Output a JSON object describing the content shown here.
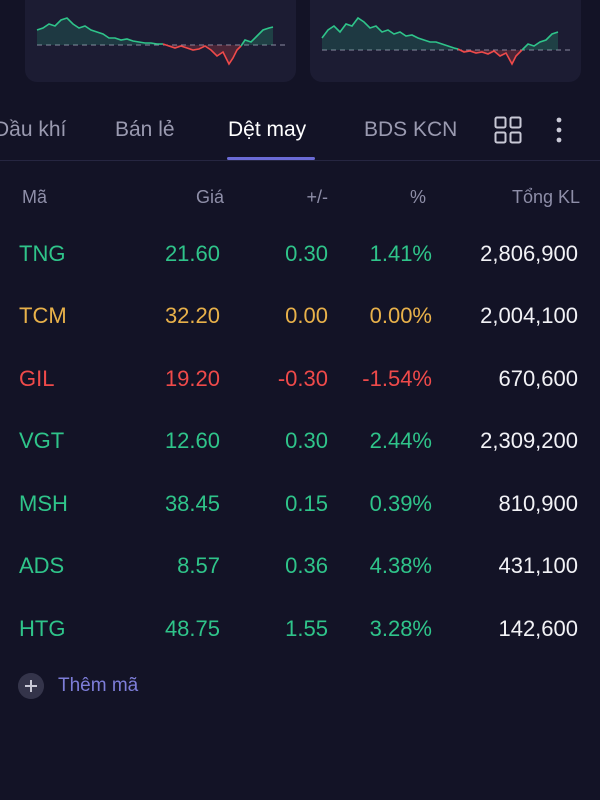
{
  "colors": {
    "up": "#2fc48a",
    "reference": "#e8b14a",
    "down": "#ef4a4a",
    "accent": "#6b6bd6",
    "background": "#131326"
  },
  "tabs": [
    {
      "label": "Dầu khí",
      "active": false
    },
    {
      "label": "Bán lẻ",
      "active": false
    },
    {
      "label": "Dệt may",
      "active": true
    },
    {
      "label": "BDS KCN",
      "active": false
    }
  ],
  "toolbar": {
    "grid_icon": "grid-view-icon",
    "more_icon": "more-vertical-icon"
  },
  "table": {
    "columns": [
      "Mã",
      "Giá",
      "+/-",
      "%",
      "Tổng KL"
    ],
    "rows": [
      {
        "symbol": "TNG",
        "price": "21.60",
        "change": "0.30",
        "percent": "1.41%",
        "volume": "2,806,900",
        "trend": "up"
      },
      {
        "symbol": "TCM",
        "price": "32.20",
        "change": "0.00",
        "percent": "0.00%",
        "volume": "2,004,100",
        "trend": "ref"
      },
      {
        "symbol": "GIL",
        "price": "19.20",
        "change": "-0.30",
        "percent": "-1.54%",
        "volume": "670,600",
        "trend": "down"
      },
      {
        "symbol": "VGT",
        "price": "12.60",
        "change": "0.30",
        "percent": "2.44%",
        "volume": "2,309,200",
        "trend": "up"
      },
      {
        "symbol": "MSH",
        "price": "38.45",
        "change": "0.15",
        "percent": "0.39%",
        "volume": "810,900",
        "trend": "up"
      },
      {
        "symbol": "ADS",
        "price": "8.57",
        "change": "0.36",
        "percent": "4.38%",
        "volume": "431,100",
        "trend": "up"
      },
      {
        "symbol": "HTG",
        "price": "48.75",
        "change": "1.55",
        "percent": "3.28%",
        "volume": "142,600",
        "trend": "up"
      }
    ]
  },
  "add_symbol": {
    "label": "Thêm mã",
    "icon": "plus-icon"
  }
}
